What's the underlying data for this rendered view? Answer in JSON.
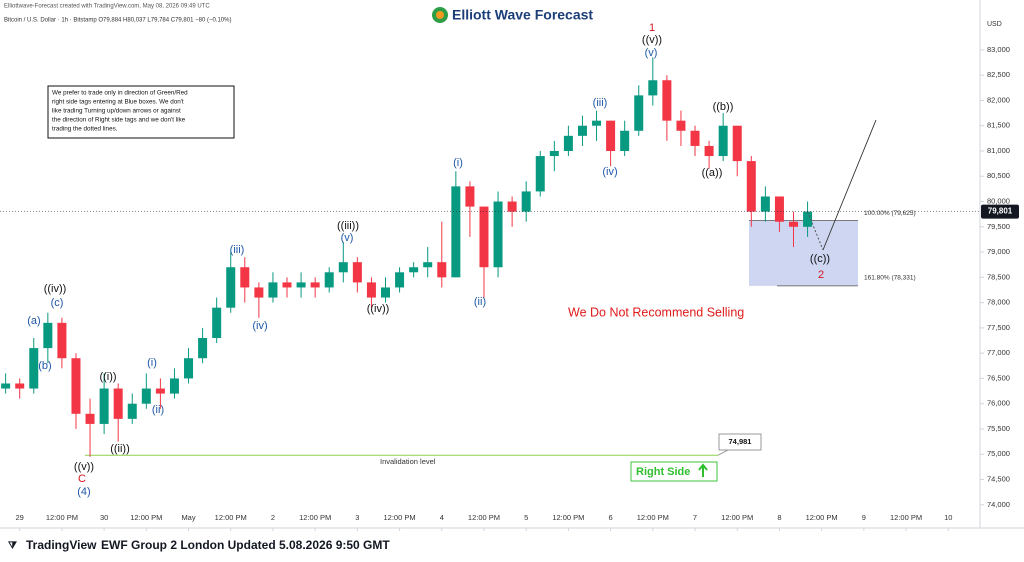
{
  "header": {
    "creator": "Elliottwave-Forecast created with TradingView.com, May 08, 2026 09:49 UTC",
    "symbol": "Bitcoin / U.S. Dollar · 1h · Bitstamp  O79,884 H80,037 L79,784 C79,801 −80 (−0.10%)",
    "logo": "Elliott Wave Forecast",
    "currency": "USD"
  },
  "note": [
    "We prefer to trade only in direction of Green/Red",
    "right side tags entering at Blue boxes. We don't",
    "like trading Turning up/down arrows or against",
    "the direction of Right side tags and we don't like",
    "trading the dotted lines."
  ],
  "chart_data": {
    "type": "candlestick",
    "ohlc": [
      [
        76300,
        76600,
        76200,
        76400
      ],
      [
        76400,
        76500,
        76100,
        76300
      ],
      [
        76300,
        77300,
        76200,
        77100
      ],
      [
        77100,
        77800,
        76800,
        77600
      ],
      [
        77600,
        77700,
        76700,
        76900
      ],
      [
        76900,
        77000,
        75500,
        75800
      ],
      [
        75800,
        76100,
        74950,
        75600
      ],
      [
        75600,
        76600,
        75400,
        76300
      ],
      [
        76300,
        76400,
        75250,
        75700
      ],
      [
        75700,
        76200,
        75600,
        76000
      ],
      [
        76000,
        76600,
        75900,
        76300
      ],
      [
        76300,
        76500,
        75900,
        76200
      ],
      [
        76200,
        76700,
        76100,
        76500
      ],
      [
        76500,
        77100,
        76400,
        76900
      ],
      [
        76900,
        77500,
        76800,
        77300
      ],
      [
        77300,
        78100,
        77200,
        77900
      ],
      [
        77900,
        79000,
        77800,
        78700
      ],
      [
        78700,
        78900,
        78000,
        78300
      ],
      [
        78300,
        78400,
        77700,
        78100
      ],
      [
        78100,
        78600,
        78000,
        78400
      ],
      [
        78400,
        78500,
        78100,
        78300
      ],
      [
        78300,
        78600,
        78100,
        78400
      ],
      [
        78400,
        78500,
        78100,
        78300
      ],
      [
        78300,
        78700,
        78200,
        78600
      ],
      [
        78600,
        79200,
        78400,
        78800
      ],
      [
        78800,
        78900,
        78200,
        78400
      ],
      [
        78400,
        78500,
        77900,
        78100
      ],
      [
        78100,
        78500,
        78000,
        78300
      ],
      [
        78300,
        78700,
        78200,
        78600
      ],
      [
        78600,
        78800,
        78500,
        78700
      ],
      [
        78700,
        79100,
        78500,
        78800
      ],
      [
        78800,
        79600,
        78300,
        78500
      ],
      [
        78500,
        80600,
        78500,
        80300
      ],
      [
        80300,
        80400,
        79300,
        79900
      ],
      [
        79900,
        79900,
        78100,
        78700
      ],
      [
        78700,
        80200,
        78500,
        80000
      ],
      [
        80000,
        80100,
        79500,
        79800
      ],
      [
        79800,
        80400,
        79600,
        80200
      ],
      [
        80200,
        81000,
        80100,
        80900
      ],
      [
        80900,
        81200,
        80600,
        81000
      ],
      [
        81000,
        81500,
        80900,
        81300
      ],
      [
        81300,
        81700,
        81100,
        81500
      ],
      [
        81500,
        81800,
        81200,
        81600
      ],
      [
        81600,
        81600,
        80700,
        81000
      ],
      [
        81000,
        81600,
        80900,
        81400
      ],
      [
        81400,
        82300,
        81300,
        82100
      ],
      [
        82100,
        82850,
        81900,
        82400
      ],
      [
        82400,
        82500,
        81200,
        81600
      ],
      [
        81600,
        81800,
        81100,
        81400
      ],
      [
        81400,
        81500,
        80900,
        81100
      ],
      [
        81100,
        81200,
        80650,
        80900
      ],
      [
        80900,
        81750,
        80800,
        81500
      ],
      [
        81500,
        81500,
        80500,
        80800
      ],
      [
        80800,
        80900,
        79500,
        79800
      ],
      [
        79800,
        80300,
        79600,
        80100
      ],
      [
        80100,
        80100,
        79400,
        79600
      ],
      [
        79600,
        79800,
        79100,
        79500
      ],
      [
        79500,
        80000,
        79300,
        79801
      ]
    ],
    "up_color": "#089981",
    "down_color": "#f23645",
    "ylim": [
      73600,
      83750
    ],
    "yticks": [
      {
        "value": 74000,
        "label": "74,000"
      },
      {
        "value": 74500,
        "label": "74,500"
      },
      {
        "value": 75000,
        "label": "75,000"
      },
      {
        "value": 75500,
        "label": "75,500"
      },
      {
        "value": 76000,
        "label": "76,000"
      },
      {
        "value": 76500,
        "label": "76,500"
      },
      {
        "value": 77000,
        "label": "77,000"
      },
      {
        "value": 77500,
        "label": "77,500"
      },
      {
        "value": 78000,
        "label": "78,000"
      },
      {
        "value": 78500,
        "label": "78,500"
      },
      {
        "value": 79000,
        "label": "79,000"
      },
      {
        "value": 79500,
        "label": "79,500"
      },
      {
        "value": 80000,
        "label": "80,000"
      },
      {
        "value": 80500,
        "label": "80,500"
      },
      {
        "value": 81000,
        "label": "81,000"
      },
      {
        "value": 81500,
        "label": "81,500"
      },
      {
        "value": 82000,
        "label": "82,000"
      },
      {
        "value": 82500,
        "label": "82,500"
      },
      {
        "value": 83000,
        "label": "83,000"
      }
    ],
    "xlim": [
      -0.4,
      68.9
    ],
    "xticks": [
      {
        "value": 1,
        "label": "29"
      },
      {
        "value": 4,
        "label": "12:00 PM"
      },
      {
        "value": 7,
        "label": "30"
      },
      {
        "value": 10,
        "label": "12:00 PM"
      },
      {
        "value": 13,
        "label": "May"
      },
      {
        "value": 16,
        "label": "12:00 PM"
      },
      {
        "value": 19,
        "label": "2"
      },
      {
        "value": 22,
        "label": "12:00 PM"
      },
      {
        "value": 25,
        "label": "3"
      },
      {
        "value": 28,
        "label": "12:00 PM"
      },
      {
        "value": 31,
        "label": "4"
      },
      {
        "value": 34,
        "label": "12:00 PM"
      },
      {
        "value": 37,
        "label": "5"
      },
      {
        "value": 40,
        "label": "12:00 PM"
      },
      {
        "value": 43,
        "label": "6"
      },
      {
        "value": 46,
        "label": "12:00 PM"
      },
      {
        "value": 49,
        "label": "7"
      },
      {
        "value": 52,
        "label": "12:00 PM"
      },
      {
        "value": 55,
        "label": "8"
      },
      {
        "value": 58,
        "label": "12:00 PM"
      },
      {
        "value": 61,
        "label": "9"
      },
      {
        "value": 64,
        "label": "12:00 PM"
      },
      {
        "value": 67,
        "label": "10"
      }
    ],
    "last_price": {
      "value": 79801,
      "label": "79,801"
    },
    "fib_levels": [
      {
        "value": 79625,
        "label": "100.00% (79,625)"
      },
      {
        "value": 78331,
        "label": "161.80% (78,331)"
      }
    ],
    "invalidation": {
      "value": 74981,
      "label": "74,981",
      "text": "Invalidation level",
      "color": "#8fd14f"
    },
    "annotations": [
      {
        "text": "(a)",
        "color": "#1f57a8"
      },
      {
        "text": "(b)",
        "color": "#1f57a8"
      },
      {
        "text": "(c)",
        "color": "#1f57a8"
      },
      {
        "text": "((iv))",
        "color": "#111111"
      },
      {
        "text": "((v))",
        "color": "#111111"
      },
      {
        "text": "C",
        "color": "#d4141c"
      },
      {
        "text": "(4)",
        "color": "#1f57a8"
      },
      {
        "text": "((i))",
        "color": "#111111"
      },
      {
        "text": "((ii))",
        "color": "#111111"
      },
      {
        "text": "(i)",
        "color": "#1f57a8"
      },
      {
        "text": "(ii)",
        "color": "#1f57a8"
      },
      {
        "text": "(iii)",
        "color": "#1f57a8"
      },
      {
        "text": "(iv)",
        "color": "#1f57a8"
      },
      {
        "text": "((iii))",
        "color": "#111111"
      },
      {
        "text": "(v)",
        "color": "#1f57a8"
      },
      {
        "text": "((iv))",
        "color": "#111111"
      },
      {
        "text": "(i)",
        "color": "#1f57a8"
      },
      {
        "text": "(ii)",
        "color": "#1f57a8"
      },
      {
        "text": "(iii)",
        "color": "#1f57a8"
      },
      {
        "text": "(iv)",
        "color": "#1f57a8"
      },
      {
        "text": "1",
        "color": "#d4141c"
      },
      {
        "text": "((v))",
        "color": "#111111"
      },
      {
        "text": "(v)",
        "color": "#1f57a8"
      },
      {
        "text": "((b))",
        "color": "#111111"
      },
      {
        "text": "((a))",
        "color": "#111111"
      },
      {
        "text": "((c))",
        "color": "#111111"
      },
      {
        "text": "2",
        "color": "#d4141c"
      }
    ],
    "warning": "We Do Not Recommend Selling",
    "side_tag": "Right Side"
  },
  "footer": {
    "brand": "TradingView",
    "caption": "EWF Group 2 London Updated 5.08.2026 9:50 GMT"
  }
}
